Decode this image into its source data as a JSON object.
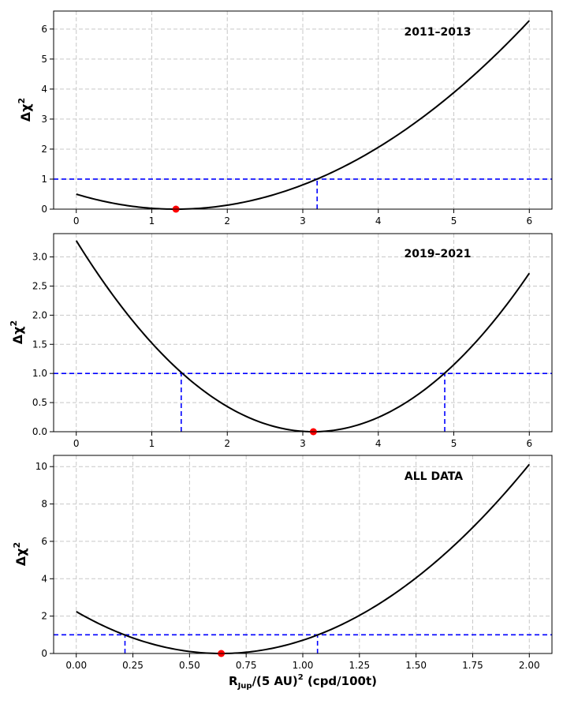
{
  "chart_data": [
    {
      "type": "line",
      "annotation": "2011–2013",
      "ylabel": "Δχ",
      "ylabel_sup": "2",
      "xlabel": "",
      "xlim": [
        -0.3,
        6.3
      ],
      "ylim": [
        0,
        6.6
      ],
      "xticks": [
        0,
        1,
        2,
        3,
        4,
        5,
        6
      ],
      "xtick_labels": [
        "0",
        "1",
        "2",
        "3",
        "4",
        "5",
        "6"
      ],
      "yticks": [
        0,
        1,
        2,
        3,
        4,
        5,
        6
      ],
      "ytick_labels": [
        "0",
        "1",
        "2",
        "3",
        "4",
        "5",
        "6"
      ],
      "grid": true,
      "curve": {
        "model": "parabola",
        "x_range": [
          0,
          6
        ],
        "vertex_x": 1.32,
        "vertex_y": 0,
        "x": [
          0,
          0.5,
          1.0,
          1.32,
          2.0,
          2.5,
          3.0,
          3.19,
          3.5,
          4.0,
          4.5,
          5.0,
          5.5,
          6.0
        ],
        "y": [
          0.5,
          0.19,
          0.03,
          0.0,
          0.13,
          0.4,
          0.81,
          1.0,
          1.35,
          2.06,
          2.9,
          3.87,
          5.0,
          6.28
        ]
      },
      "min_point": {
        "x": 1.32,
        "y": 0
      },
      "threshold": 1,
      "crossings_x": [
        3.19
      ],
      "colors": {
        "curve": "#000000",
        "threshold": "#0000ff",
        "min_point": "#ff0000"
      }
    },
    {
      "type": "line",
      "annotation": "2019–2021",
      "ylabel": "Δχ",
      "ylabel_sup": "2",
      "xlabel": "",
      "xlim": [
        -0.3,
        6.3
      ],
      "ylim": [
        0,
        3.4
      ],
      "xticks": [
        0,
        1,
        2,
        3,
        4,
        5,
        6
      ],
      "xtick_labels": [
        "0",
        "1",
        "2",
        "3",
        "4",
        "5",
        "6"
      ],
      "yticks": [
        0,
        0.5,
        1.0,
        1.5,
        2.0,
        2.5,
        3.0
      ],
      "ytick_labels": [
        "0.0",
        "0.5",
        "1.0",
        "1.5",
        "2.0",
        "2.5",
        "3.0"
      ],
      "grid": true,
      "curve": {
        "model": "parabola",
        "x_range": [
          0,
          6
        ],
        "vertex_x": 3.14,
        "vertex_y": 0,
        "x": [
          0,
          0.5,
          1.0,
          1.39,
          2.0,
          2.5,
          3.0,
          3.14,
          3.5,
          4.0,
          4.5,
          4.88,
          5.5,
          6.0
        ],
        "y": [
          3.22,
          2.22,
          1.49,
          1.0,
          0.43,
          0.13,
          0.0,
          0.0,
          0.04,
          0.24,
          0.61,
          1.0,
          1.83,
          2.72
        ]
      },
      "min_point": {
        "x": 3.14,
        "y": 0
      },
      "threshold": 1,
      "crossings_x": [
        1.39,
        4.88
      ],
      "colors": {
        "curve": "#000000",
        "threshold": "#0000ff",
        "min_point": "#ff0000"
      }
    },
    {
      "type": "line",
      "annotation": "ALL DATA",
      "ylabel": "Δχ",
      "ylabel_sup": "2",
      "xlabel": "R",
      "xlabel_sub": "Jup",
      "xlabel_mid": "/(5 AU)",
      "xlabel_sup": "2",
      "xlabel_tail": " (cpd/100t)",
      "xlim": [
        -0.1,
        2.1
      ],
      "ylim": [
        0,
        10.6
      ],
      "xticks": [
        0,
        0.25,
        0.5,
        0.75,
        1.0,
        1.25,
        1.5,
        1.75,
        2.0
      ],
      "xtick_labels": [
        "0.00",
        "0.25",
        "0.50",
        "0.75",
        "1.00",
        "1.25",
        "1.50",
        "1.75",
        "2.00"
      ],
      "yticks": [
        0,
        2,
        4,
        6,
        8,
        10
      ],
      "ytick_labels": [
        "0",
        "2",
        "4",
        "6",
        "8",
        "10"
      ],
      "grid": true,
      "curve": {
        "model": "parabola",
        "x_range": [
          0,
          2
        ],
        "vertex_x": 0.64,
        "vertex_y": 0,
        "x": [
          0,
          0.215,
          0.4,
          0.64,
          0.8,
          1.0,
          1.065,
          1.25,
          1.5,
          1.75,
          2.0
        ],
        "y": [
          2.27,
          1.0,
          0.32,
          0.0,
          0.14,
          0.72,
          1.0,
          2.06,
          4.09,
          6.81,
          10.12
        ]
      },
      "min_point": {
        "x": 0.64,
        "y": 0
      },
      "threshold": 1,
      "crossings_x": [
        0.215,
        1.065
      ],
      "colors": {
        "curve": "#000000",
        "threshold": "#0000ff",
        "min_point": "#ff0000"
      }
    }
  ]
}
